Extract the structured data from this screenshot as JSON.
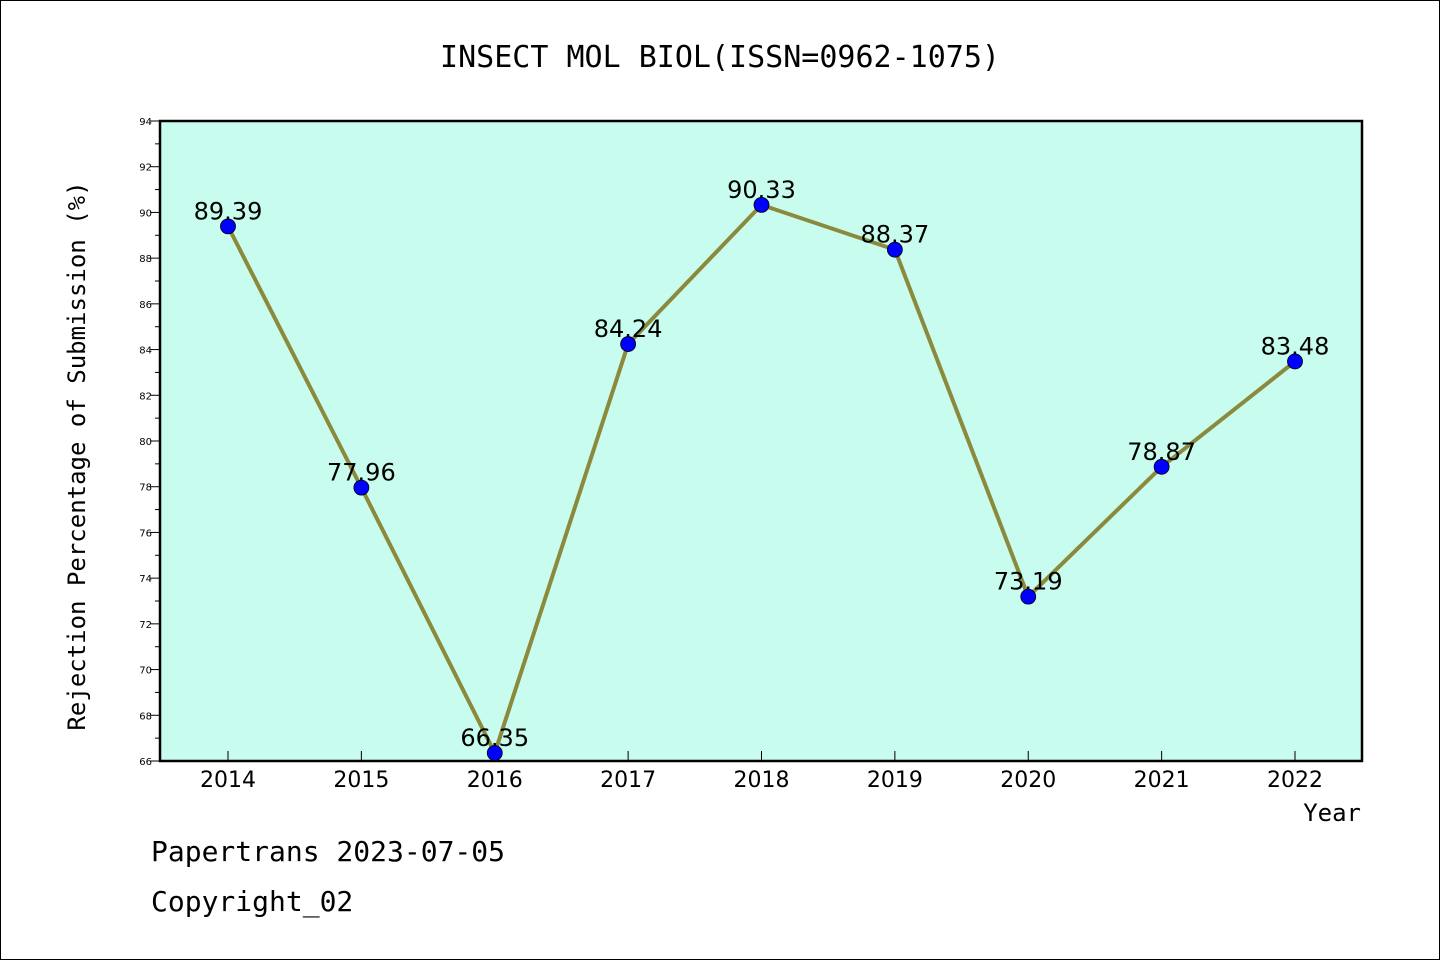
{
  "chart_data": {
    "type": "line",
    "title": "INSECT MOL BIOL(ISSN=0962-1075)",
    "xlabel": "Year",
    "ylabel": "Rejection Percentage of Submission (%)",
    "categories": [
      "2014",
      "2015",
      "2016",
      "2017",
      "2018",
      "2019",
      "2020",
      "2021",
      "2022"
    ],
    "values": [
      89.39,
      77.96,
      66.35,
      84.24,
      90.33,
      88.37,
      73.19,
      78.87,
      83.48
    ],
    "value_labels": [
      "89.39",
      "77.96",
      "66.35",
      "84.24",
      "90.33",
      "88.37",
      "73.19",
      "78.87",
      "83.48"
    ],
    "ylim": [
      66,
      94
    ],
    "yticks": [
      66,
      68,
      70,
      72,
      74,
      76,
      78,
      80,
      82,
      84,
      86,
      88,
      90,
      92,
      94
    ],
    "grid": false,
    "legend": "none",
    "colors": {
      "plot_background": "#c8fcee",
      "line": "#8b8a3c",
      "marker": "#0000ff"
    }
  },
  "footer": {
    "line1": "Papertrans 2023-07-05",
    "line2": "Copyright_02"
  }
}
